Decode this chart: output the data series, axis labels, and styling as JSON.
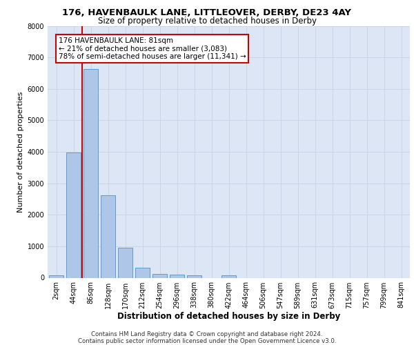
{
  "title_line1": "176, HAVENBAULK LANE, LITTLEOVER, DERBY, DE23 4AY",
  "title_line2": "Size of property relative to detached houses in Derby",
  "xlabel": "Distribution of detached houses by size in Derby",
  "ylabel": "Number of detached properties",
  "bar_labels": [
    "2sqm",
    "44sqm",
    "86sqm",
    "128sqm",
    "170sqm",
    "212sqm",
    "254sqm",
    "296sqm",
    "338sqm",
    "380sqm",
    "422sqm",
    "464sqm",
    "506sqm",
    "547sqm",
    "589sqm",
    "631sqm",
    "673sqm",
    "715sqm",
    "757sqm",
    "799sqm",
    "841sqm"
  ],
  "bar_values": [
    70,
    3980,
    6620,
    2620,
    960,
    310,
    130,
    100,
    75,
    0,
    75,
    0,
    0,
    0,
    0,
    0,
    0,
    0,
    0,
    0,
    0
  ],
  "bar_color": "#aec6e8",
  "bar_edge_color": "#5b9bd5",
  "grid_color": "#c8d4e8",
  "bg_color": "#dce6f5",
  "property_line_x": 1.5,
  "annotation_text": "176 HAVENBAULK LANE: 81sqm\n← 21% of detached houses are smaller (3,083)\n78% of semi-detached houses are larger (11,341) →",
  "annotation_box_color": "#ffffff",
  "annotation_box_edge": "#cc0000",
  "vline_color": "#cc0000",
  "footer_text": "Contains HM Land Registry data © Crown copyright and database right 2024.\nContains public sector information licensed under the Open Government Licence v3.0.",
  "ylim": [
    0,
    8000
  ],
  "yticks": [
    0,
    1000,
    2000,
    3000,
    4000,
    5000,
    6000,
    7000,
    8000
  ],
  "title1_fontsize": 9.5,
  "title2_fontsize": 8.5,
  "ylabel_fontsize": 8,
  "xlabel_fontsize": 8.5,
  "tick_fontsize": 7,
  "footer_fontsize": 6.2,
  "ann_fontsize": 7.5
}
